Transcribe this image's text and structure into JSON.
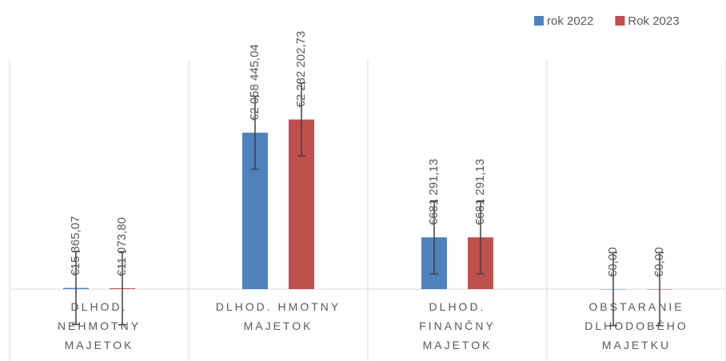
{
  "chart_data": {
    "type": "bar",
    "categories": [
      "DLHOD. NEHMOTNY MAJETOK",
      "DLHOD. HMOTNY MAJETOK",
      "DLHOD. FINANČNY MAJETOK",
      "OBSTARANIE DLHODOBÉHO MAJETKU"
    ],
    "series": [
      {
        "name": "rok 2022",
        "color": "#4f81bd",
        "values": [
          15365.07,
          2058445.04,
          681291.13,
          0
        ],
        "value_labels": [
          "€15 365,07",
          "€2 058 445,04",
          "€681 291,13",
          "€0,00"
        ],
        "errors": [
          480000,
          480000,
          480000,
          480000
        ]
      },
      {
        "name": "Rok 2023",
        "color": "#c0504d",
        "values": [
          11073.8,
          2232202.73,
          681291.13,
          0
        ],
        "value_labels": [
          "€11 073,80",
          "€2 232 202,73",
          "€681 291,13",
          "€0,00"
        ],
        "errors": [
          480000,
          480000,
          480000,
          480000
        ]
      }
    ],
    "ylim": [
      0,
      3500000
    ],
    "legend": "top-right"
  }
}
